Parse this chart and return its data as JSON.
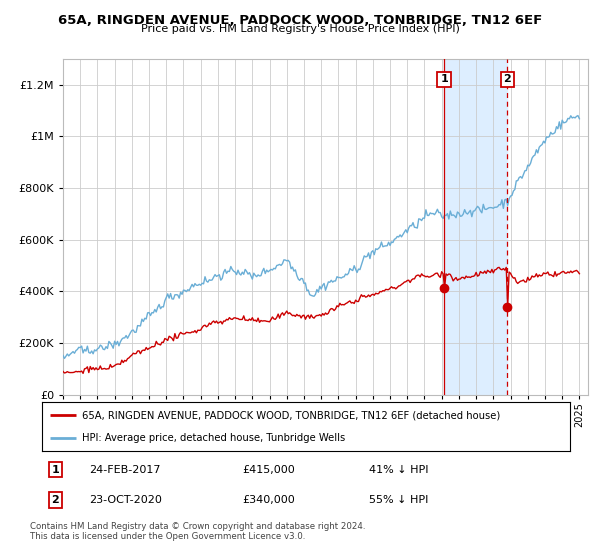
{
  "title": "65A, RINGDEN AVENUE, PADDOCK WOOD, TONBRIDGE, TN12 6EF",
  "subtitle": "Price paid vs. HM Land Registry's House Price Index (HPI)",
  "legend_line1": "65A, RINGDEN AVENUE, PADDOCK WOOD, TONBRIDGE, TN12 6EF (detached house)",
  "legend_line2": "HPI: Average price, detached house, Tunbridge Wells",
  "annotation1_date": "24-FEB-2017",
  "annotation1_price": 415000,
  "annotation1_pct": "41% ↓ HPI",
  "annotation2_date": "23-OCT-2020",
  "annotation2_price": 340000,
  "annotation2_pct": "55% ↓ HPI",
  "footer": "Contains HM Land Registry data © Crown copyright and database right 2024.\nThis data is licensed under the Open Government Licence v3.0.",
  "hpi_color": "#6aaed6",
  "price_color": "#cc0000",
  "shade_color": "#ddeeff",
  "ylim": [
    0,
    1300000
  ],
  "yticks": [
    0,
    200000,
    400000,
    600000,
    800000,
    1000000,
    1200000
  ],
  "start_year": 1995,
  "end_year": 2025,
  "sale1_year": 2017.14,
  "sale2_year": 2020.81
}
